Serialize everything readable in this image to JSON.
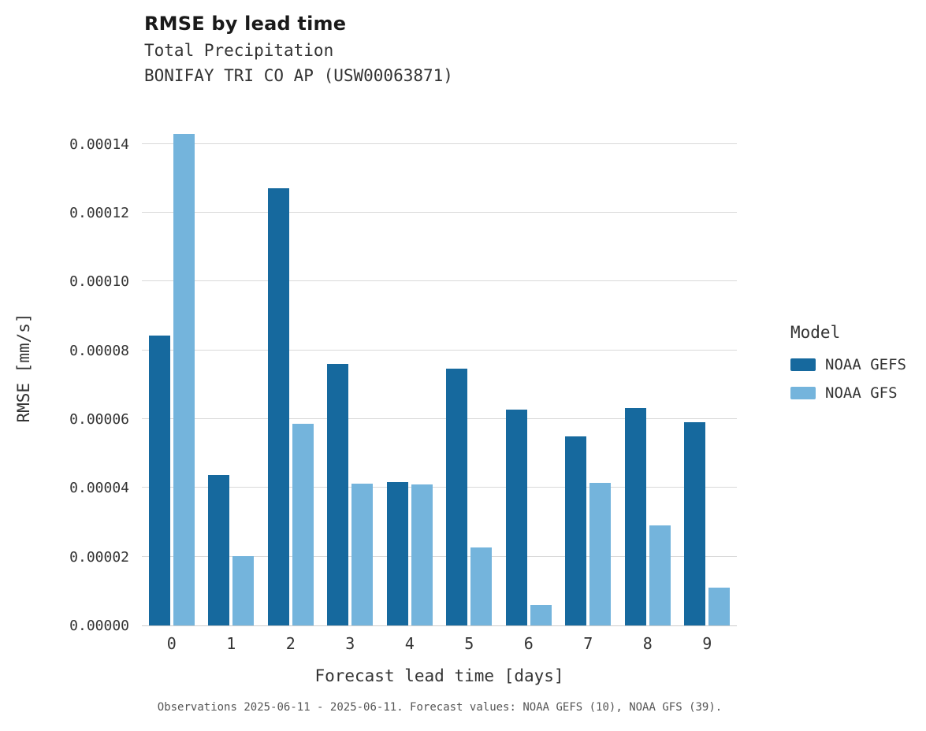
{
  "header": {
    "title": "RMSE by lead time",
    "subtitle1": "Total Precipitation",
    "subtitle2": "BONIFAY TRI CO AP (USW00063871)"
  },
  "chart_data": {
    "type": "bar",
    "title": "RMSE by lead time",
    "subtitle": "Total Precipitation — BONIFAY TRI CO AP (USW00063871)",
    "xlabel": "Forecast lead time [days]",
    "ylabel": "RMSE [mm/s]",
    "categories": [
      "0",
      "1",
      "2",
      "3",
      "4",
      "5",
      "6",
      "7",
      "8",
      "9"
    ],
    "series": [
      {
        "name": "NOAA GEFS",
        "color": "#16699e",
        "values": [
          8.42e-05,
          4.38e-05,
          0.000127,
          7.6e-05,
          4.17e-05,
          7.46e-05,
          6.28e-05,
          5.49e-05,
          6.33e-05,
          5.92e-05
        ]
      },
      {
        "name": "NOAA GFS",
        "color": "#74b4dc",
        "values": [
          0.000143,
          2.01e-05,
          5.86e-05,
          4.13e-05,
          4.11e-05,
          2.26e-05,
          6e-06,
          4.15e-05,
          2.9e-05,
          1.1e-05
        ]
      }
    ],
    "ylim": [
      0,
      0.00015
    ],
    "yticks": [
      0,
      2e-05,
      4e-05,
      6e-05,
      8e-05,
      0.0001,
      0.00012,
      0.00014
    ],
    "ytick_labels": [
      "0.00000",
      "0.00002",
      "0.00004",
      "0.00006",
      "0.00008",
      "0.00010",
      "0.00012",
      "0.00014"
    ],
    "grid": "horizontal",
    "legend_position": "right"
  },
  "legend": {
    "title": "Model"
  },
  "caption": "Observations 2025-06-11 - 2025-06-11. Forecast values: NOAA GEFS (10), NOAA GFS (39)."
}
